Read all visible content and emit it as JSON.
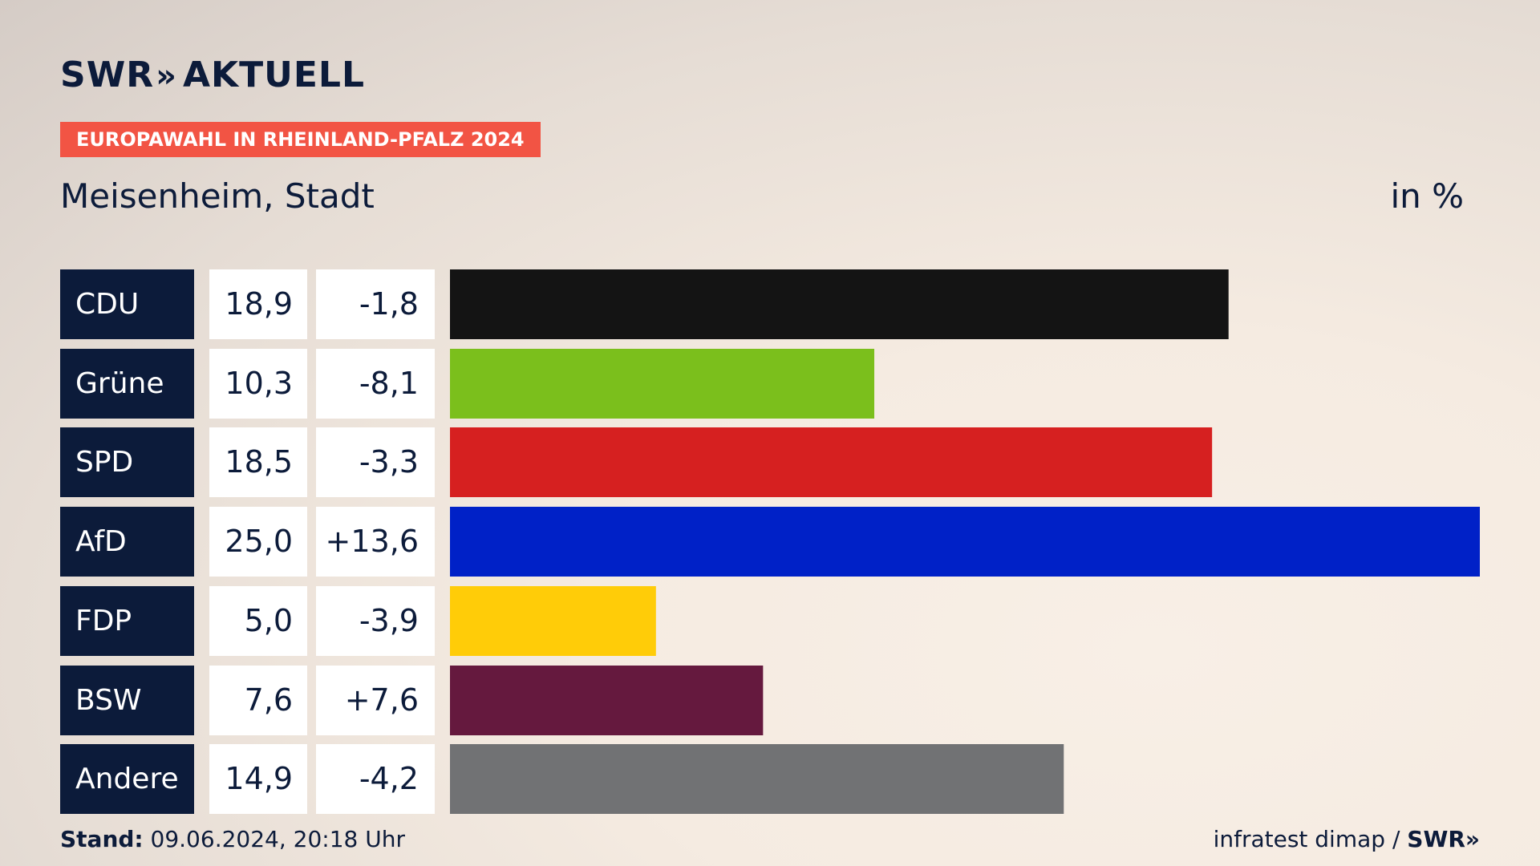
{
  "brand": {
    "name": "SWR",
    "chevrons": "»",
    "section": "AKTUELL"
  },
  "badge": "EUROPAWAHL IN RHEINLAND-PFALZ 2024",
  "subtitle": "Meisenheim, Stadt",
  "unit": "in %",
  "footer": {
    "stand_label": "Stand:",
    "stand_value": "09.06.2024, 20:18 Uhr",
    "source": "infratest dimap / ",
    "source_brand": "SWR",
    "source_chevrons": "»"
  },
  "chart_data": {
    "type": "bar",
    "orientation": "horizontal",
    "xlim": [
      0,
      25
    ],
    "categories": [
      "CDU",
      "Grüne",
      "SPD",
      "AfD",
      "FDP",
      "BSW",
      "Andere"
    ],
    "values": [
      18.9,
      10.3,
      18.5,
      25.0,
      5.0,
      7.6,
      14.9
    ],
    "value_labels": [
      "18,9",
      "10,3",
      "18,5",
      "25,0",
      "5,0",
      "7,6",
      "14,9"
    ],
    "diff_labels": [
      "-1,8",
      "-8,1",
      "-3,3",
      "+13,6",
      "-3,9",
      "+7,6",
      "-4,2"
    ],
    "colors": [
      "#141414",
      "#7bbf1c",
      "#d62020",
      "#0021c7",
      "#ffcc08",
      "#65193e",
      "#717274"
    ]
  }
}
